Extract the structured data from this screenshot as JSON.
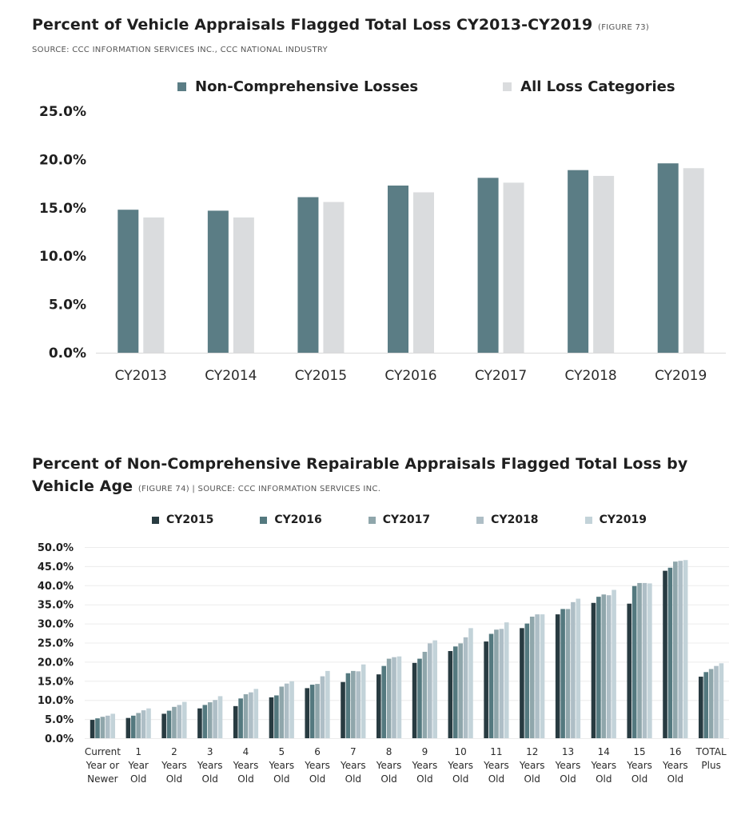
{
  "colors": {
    "c1_noncomp": "#5b7d85",
    "c1_all": "#dadcde",
    "c2_series": [
      "#283b41",
      "#54797f",
      "#8fa6ab",
      "#aebec6",
      "#c3d3d9"
    ]
  },
  "chart1": {
    "title": "Percent of Vehicle Appraisals Flagged Total Loss CY2013-CY2019",
    "figure": "(FIGURE 73)",
    "source": "SOURCE: CCC INFORMATION SERVICES INC., CCC NATIONAL INDUSTRY"
  },
  "chart2": {
    "title_line1": "Percent of Non-Comprehensive Repairable Appraisals Flagged Total Loss by",
    "title_line2": "Vehicle Age",
    "figure_source": "(FIGURE 74) | SOURCE: CCC INFORMATION SERVICES INC."
  },
  "chart_data": [
    {
      "type": "bar",
      "title": "Percent of Vehicle Appraisals Flagged Total Loss CY2013-CY2019",
      "categories": [
        "CY2013",
        "CY2014",
        "CY2015",
        "CY2016",
        "CY2017",
        "CY2018",
        "CY2019"
      ],
      "series": [
        {
          "name": "Non-Comprehensive Losses",
          "values": [
            14.8,
            14.7,
            16.1,
            17.3,
            18.1,
            18.9,
            19.6
          ]
        },
        {
          "name": "All Loss Categories",
          "values": [
            14.0,
            14.0,
            15.6,
            16.6,
            17.6,
            18.3,
            19.1
          ]
        }
      ],
      "ylim": [
        0,
        25
      ],
      "yticks": [
        "0.0%",
        "5.0%",
        "10.0%",
        "15.0%",
        "20.0%",
        "25.0%"
      ],
      "grid": false,
      "legend_position": "top"
    },
    {
      "type": "bar",
      "title": "Percent of Non-Comprehensive Repairable Appraisals Flagged Total Loss by Vehicle Age",
      "categories": [
        [
          "Current",
          "Year or",
          "Newer"
        ],
        [
          "1",
          "Year",
          "Old"
        ],
        [
          "2",
          "Years",
          "Old"
        ],
        [
          "3",
          "Years",
          "Old"
        ],
        [
          "4",
          "Years",
          "Old"
        ],
        [
          "5",
          "Years",
          "Old"
        ],
        [
          "6",
          "Years",
          "Old"
        ],
        [
          "7",
          "Years",
          "Old"
        ],
        [
          "8",
          "Years",
          "Old"
        ],
        [
          "9",
          "Years",
          "Old"
        ],
        [
          "10",
          "Years",
          "Old"
        ],
        [
          "11",
          "Years",
          "Old"
        ],
        [
          "12",
          "Years",
          "Old"
        ],
        [
          "13",
          "Years",
          "Old"
        ],
        [
          "14",
          "Years",
          "Old"
        ],
        [
          "15",
          "Years",
          "Old"
        ],
        [
          "16",
          "Years",
          "Old"
        ],
        [
          "TOTAL",
          "Plus"
        ]
      ],
      "series": [
        {
          "name": "CY2015",
          "values": [
            4.8,
            5.3,
            6.4,
            7.8,
            8.4,
            10.7,
            13.1,
            14.7,
            16.7,
            19.7,
            22.8,
            25.3,
            28.8,
            32.4,
            35.4,
            35.2,
            43.8,
            16.1
          ]
        },
        {
          "name": "CY2016",
          "values": [
            5.2,
            5.9,
            7.2,
            8.7,
            10.4,
            11.2,
            14.0,
            17.0,
            18.9,
            20.8,
            24.0,
            27.3,
            30.0,
            33.8,
            37.0,
            39.8,
            44.6,
            17.3
          ]
        },
        {
          "name": "CY2017",
          "values": [
            5.6,
            6.6,
            8.2,
            9.4,
            11.5,
            13.5,
            14.2,
            17.6,
            20.8,
            22.6,
            24.8,
            28.4,
            31.8,
            33.8,
            37.6,
            40.6,
            46.2,
            18.1
          ]
        },
        {
          "name": "CY2018",
          "values": [
            5.9,
            7.3,
            8.7,
            10.0,
            12.0,
            14.3,
            16.2,
            17.5,
            21.2,
            24.8,
            26.4,
            28.6,
            32.4,
            35.6,
            37.4,
            40.6,
            46.4,
            18.9
          ]
        },
        {
          "name": "CY2019",
          "values": [
            6.4,
            7.8,
            9.5,
            11.0,
            12.9,
            14.9,
            17.6,
            19.3,
            21.4,
            25.6,
            28.8,
            30.3,
            32.4,
            36.5,
            38.8,
            40.5,
            46.6,
            19.6
          ]
        }
      ],
      "ylim": [
        0,
        50
      ],
      "yticks": [
        "0.0%",
        "5.0%",
        "10.0%",
        "15.0%",
        "20.0%",
        "25.0%",
        "30.0%",
        "35.0%",
        "40.0%",
        "45.0%",
        "50.0%"
      ],
      "grid": true,
      "legend_position": "top"
    }
  ]
}
